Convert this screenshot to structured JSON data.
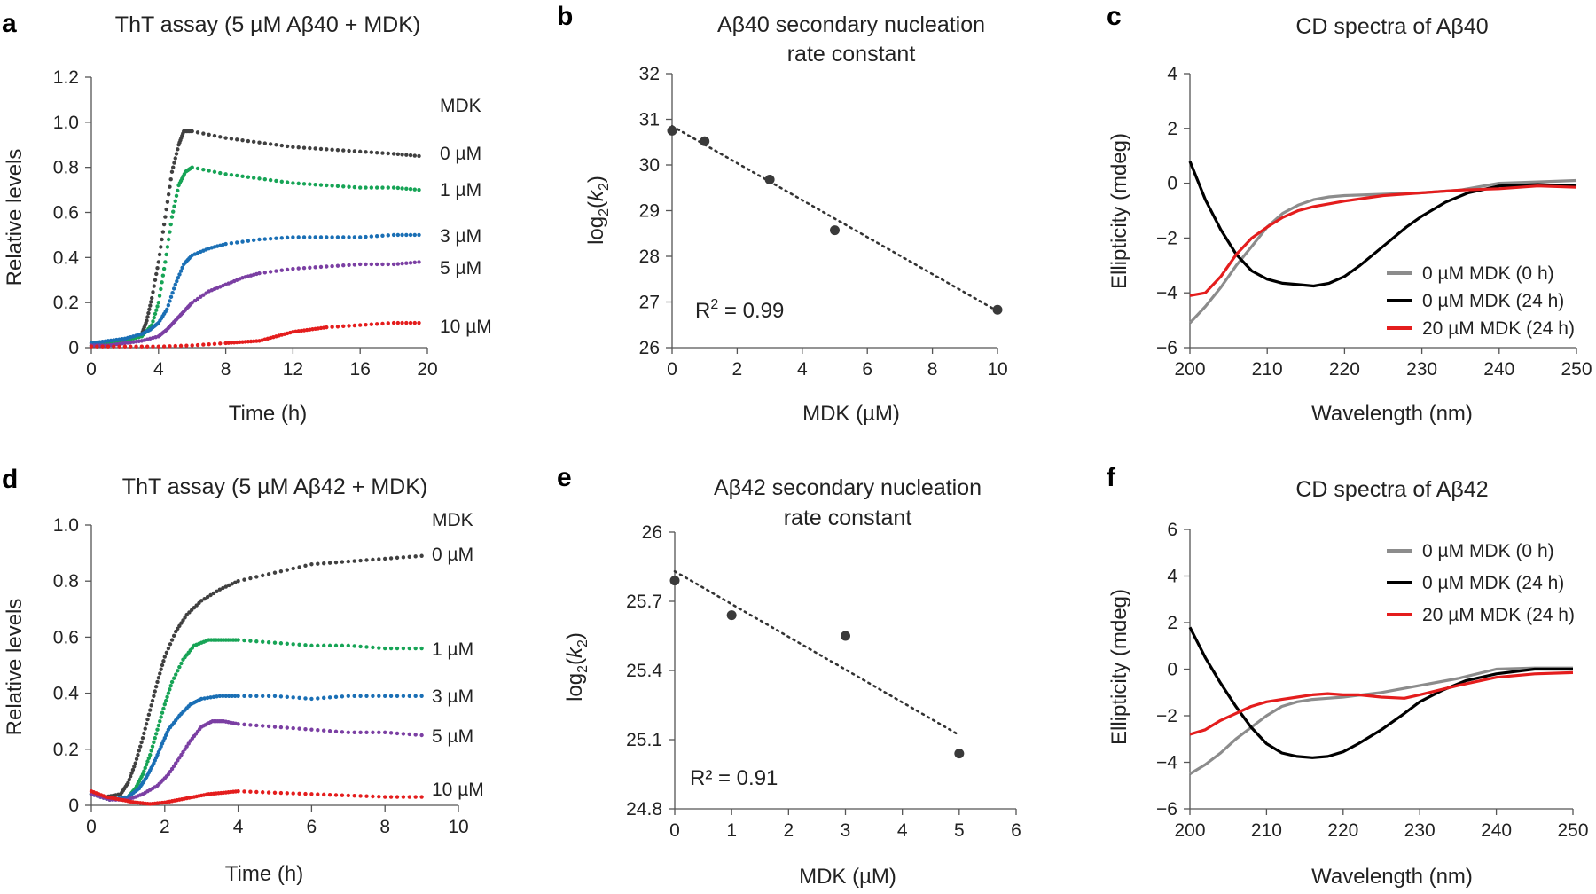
{
  "chart_data": [
    {
      "id": "a",
      "type": "scatter",
      "panel_label": "a",
      "title": "ThT assay (5 µM Aβ40 + MDK)",
      "xlabel": "Time (h)",
      "ylabel": "Relative levels",
      "xlim": [
        0,
        20
      ],
      "ylim": [
        0,
        1.2
      ],
      "xticks": [
        0,
        4,
        8,
        12,
        16,
        20
      ],
      "yticks": [
        0,
        0.2,
        0.4,
        0.6,
        0.8,
        1.0,
        1.2
      ],
      "ytick_labels": [
        "0",
        "0.2",
        "0.4",
        "0.6",
        "0.8",
        "1.0",
        "1.2"
      ],
      "legend_title": "MDK",
      "series": [
        {
          "name": "0 µM",
          "color": "#404040",
          "x": [
            0,
            1,
            2,
            3,
            3.3,
            3.6,
            4,
            4.4,
            4.8,
            5.2,
            5.5,
            6,
            8,
            10,
            12,
            14,
            16,
            18,
            19.5
          ],
          "y": [
            0.02,
            0.02,
            0.03,
            0.06,
            0.12,
            0.22,
            0.38,
            0.58,
            0.78,
            0.9,
            0.96,
            0.96,
            0.93,
            0.91,
            0.89,
            0.88,
            0.87,
            0.86,
            0.85
          ]
        },
        {
          "name": "1 µM",
          "color": "#17a456",
          "x": [
            0,
            1,
            2,
            3,
            3.6,
            4,
            4.4,
            4.8,
            5.2,
            5.6,
            6,
            8,
            10,
            12,
            14,
            16,
            18,
            19.5
          ],
          "y": [
            0.01,
            0.02,
            0.03,
            0.05,
            0.1,
            0.2,
            0.38,
            0.58,
            0.72,
            0.78,
            0.8,
            0.77,
            0.75,
            0.73,
            0.72,
            0.71,
            0.71,
            0.7
          ]
        },
        {
          "name": "3 µM",
          "color": "#1a6fb5",
          "x": [
            0,
            1,
            2,
            3,
            3.5,
            4,
            4.5,
            5,
            5.5,
            6,
            7,
            8,
            10,
            12,
            14,
            16,
            18,
            19.5
          ],
          "y": [
            0.02,
            0.03,
            0.04,
            0.06,
            0.08,
            0.11,
            0.17,
            0.28,
            0.37,
            0.41,
            0.44,
            0.46,
            0.48,
            0.49,
            0.49,
            0.49,
            0.5,
            0.5
          ]
        },
        {
          "name": "5 µM",
          "color": "#7b3fa3",
          "x": [
            0,
            1,
            2,
            3,
            4,
            4.5,
            5,
            5.5,
            6,
            7,
            8,
            9,
            10,
            12,
            14,
            16,
            18,
            19.5
          ],
          "y": [
            0.01,
            0.01,
            0.02,
            0.03,
            0.05,
            0.08,
            0.12,
            0.16,
            0.2,
            0.25,
            0.28,
            0.31,
            0.33,
            0.35,
            0.36,
            0.37,
            0.37,
            0.38
          ]
        },
        {
          "name": "10 µM",
          "color": "#e41d1d",
          "x": [
            0,
            2,
            4,
            6,
            8,
            9,
            10,
            11,
            12,
            13,
            14,
            16,
            18,
            19.5
          ],
          "y": [
            0.005,
            0.005,
            0.005,
            0.01,
            0.02,
            0.025,
            0.03,
            0.05,
            0.07,
            0.08,
            0.09,
            0.1,
            0.11,
            0.11
          ]
        }
      ]
    },
    {
      "id": "b",
      "type": "scatter",
      "panel_label": "b",
      "title": [
        "Aβ40 secondary nucleation",
        "rate constant"
      ],
      "xlabel": "MDK (µM)",
      "ylabel": "log2(k2)",
      "xlim": [
        0,
        10
      ],
      "ylim": [
        26,
        32
      ],
      "xticks": [
        0,
        2,
        4,
        6,
        8,
        10
      ],
      "yticks": [
        26,
        27,
        28,
        29,
        30,
        31,
        32
      ],
      "points": {
        "x": [
          0,
          1,
          3,
          5,
          10
        ],
        "y": [
          30.75,
          30.52,
          29.68,
          28.57,
          26.83
        ]
      },
      "fit": {
        "x": [
          0,
          10
        ],
        "y": [
          30.85,
          26.8
        ]
      },
      "annotation": "R2 = 0.99"
    },
    {
      "id": "c",
      "type": "line",
      "panel_label": "c",
      "title": "CD spectra of Aβ40",
      "xlabel": "Wavelength (nm)",
      "ylabel": "Ellipticity (mdeg)",
      "xlim": [
        200,
        250
      ],
      "ylim": [
        -6,
        4
      ],
      "xticks": [
        200,
        210,
        220,
        230,
        240,
        250
      ],
      "yticks": [
        -6,
        -4,
        -2,
        0,
        2,
        4
      ],
      "ytick_labels": [
        "−6",
        "−4",
        "−2",
        "0",
        "2",
        "4"
      ],
      "legend_position": "bottom-right",
      "series": [
        {
          "name": "0 µM MDK (0 h)",
          "color": "#8c8c8c",
          "x": [
            200,
            202,
            204,
            206,
            208,
            210,
            212,
            214,
            216,
            218,
            220,
            225,
            230,
            235,
            240,
            245,
            250
          ],
          "y": [
            -5.1,
            -4.5,
            -3.8,
            -3.0,
            -2.3,
            -1.6,
            -1.1,
            -0.8,
            -0.6,
            -0.5,
            -0.45,
            -0.4,
            -0.35,
            -0.25,
            0.0,
            0.05,
            0.1
          ]
        },
        {
          "name": "0 µM MDK (24 h)",
          "color": "#000000",
          "x": [
            200,
            202,
            204,
            206,
            208,
            210,
            212,
            214,
            216,
            218,
            220,
            222,
            225,
            228,
            230,
            233,
            236,
            240,
            245,
            250
          ],
          "y": [
            0.8,
            -0.6,
            -1.7,
            -2.6,
            -3.2,
            -3.5,
            -3.65,
            -3.7,
            -3.75,
            -3.65,
            -3.4,
            -3.0,
            -2.3,
            -1.6,
            -1.2,
            -0.7,
            -0.35,
            -0.1,
            -0.05,
            -0.1
          ]
        },
        {
          "name": "20 µM MDK (24 h)",
          "color": "#e41d1d",
          "x": [
            200,
            202,
            204,
            206,
            208,
            210,
            212,
            214,
            216,
            218,
            220,
            225,
            230,
            235,
            240,
            245,
            250
          ],
          "y": [
            -4.1,
            -4.0,
            -3.4,
            -2.6,
            -2.0,
            -1.6,
            -1.25,
            -1.0,
            -0.85,
            -0.75,
            -0.65,
            -0.45,
            -0.35,
            -0.25,
            -0.2,
            -0.1,
            -0.15
          ]
        }
      ]
    },
    {
      "id": "d",
      "type": "scatter",
      "panel_label": "d",
      "title": "ThT assay (5 µM Aβ42 + MDK)",
      "xlabel": "Time (h)",
      "ylabel": "Relative levels",
      "xlim": [
        0,
        10
      ],
      "ylim": [
        0,
        1.0
      ],
      "xticks": [
        0,
        2,
        4,
        6,
        8,
        10
      ],
      "yticks": [
        0,
        0.2,
        0.4,
        0.6,
        0.8,
        1.0
      ],
      "ytick_labels": [
        "0",
        "0.2",
        "0.4",
        "0.6",
        "0.8",
        "1.0"
      ],
      "legend_title": "MDK",
      "series": [
        {
          "name": "0 µM",
          "color": "#404040",
          "x": [
            0,
            0.4,
            0.8,
            1.0,
            1.2,
            1.4,
            1.6,
            1.8,
            2.0,
            2.3,
            2.6,
            3,
            3.5,
            4,
            5,
            6,
            7,
            8,
            9
          ],
          "y": [
            0.04,
            0.03,
            0.04,
            0.08,
            0.15,
            0.24,
            0.34,
            0.44,
            0.53,
            0.62,
            0.68,
            0.73,
            0.77,
            0.8,
            0.83,
            0.86,
            0.87,
            0.88,
            0.89
          ]
        },
        {
          "name": "1 µM",
          "color": "#17a456",
          "x": [
            0,
            0.5,
            1.0,
            1.2,
            1.4,
            1.6,
            1.8,
            2.0,
            2.2,
            2.5,
            2.8,
            3.2,
            3.6,
            4,
            5,
            6,
            7,
            8,
            9
          ],
          "y": [
            0.04,
            0.02,
            0.03,
            0.06,
            0.11,
            0.18,
            0.27,
            0.36,
            0.44,
            0.52,
            0.57,
            0.59,
            0.59,
            0.59,
            0.58,
            0.57,
            0.57,
            0.56,
            0.56
          ]
        },
        {
          "name": "3 µM",
          "color": "#1a6fb5",
          "x": [
            0,
            0.5,
            1.0,
            1.3,
            1.5,
            1.7,
            1.9,
            2.1,
            2.4,
            2.7,
            3,
            3.5,
            4,
            5,
            6,
            7,
            8,
            9
          ],
          "y": [
            0.04,
            0.02,
            0.03,
            0.06,
            0.1,
            0.15,
            0.21,
            0.27,
            0.32,
            0.36,
            0.38,
            0.39,
            0.39,
            0.39,
            0.38,
            0.39,
            0.39,
            0.39
          ]
        },
        {
          "name": "5 µM",
          "color": "#7b3fa3",
          "x": [
            0,
            0.5,
            1.0,
            1.4,
            1.8,
            2.1,
            2.4,
            2.7,
            3.0,
            3.3,
            3.6,
            4,
            5,
            6,
            7,
            8,
            9
          ],
          "y": [
            0.04,
            0.02,
            0.02,
            0.04,
            0.07,
            0.11,
            0.17,
            0.23,
            0.28,
            0.3,
            0.3,
            0.29,
            0.28,
            0.27,
            0.26,
            0.26,
            0.25
          ]
        },
        {
          "name": "10 µM",
          "color": "#e41d1d",
          "x": [
            0,
            0.4,
            0.8,
            1.2,
            1.6,
            2.0,
            2.4,
            2.8,
            3.2,
            3.6,
            4,
            5,
            6,
            7,
            8,
            9
          ],
          "y": [
            0.05,
            0.03,
            0.02,
            0.01,
            0.005,
            0.01,
            0.02,
            0.03,
            0.04,
            0.045,
            0.05,
            0.045,
            0.04,
            0.035,
            0.03,
            0.03
          ]
        }
      ]
    },
    {
      "id": "e",
      "type": "scatter",
      "panel_label": "e",
      "title": [
        "Aβ42 secondary nucleation",
        "rate constant"
      ],
      "xlabel": "MDK (µM)",
      "ylabel": "log2(k2)",
      "xlim": [
        0,
        6
      ],
      "ylim": [
        24.8,
        26
      ],
      "xticks": [
        0,
        1,
        2,
        3,
        4,
        5,
        6
      ],
      "yticks": [
        24.8,
        25.1,
        25.4,
        25.7,
        26
      ],
      "ytick_labels": [
        "24.8",
        "25.1",
        "25.4",
        "25.7",
        "26"
      ],
      "points": {
        "x": [
          0,
          1,
          3,
          5
        ],
        "y": [
          25.79,
          25.64,
          25.55,
          25.04
        ]
      },
      "fit": {
        "x": [
          0,
          5
        ],
        "y": [
          25.83,
          25.12
        ]
      },
      "annotation": "R² = 0.91"
    },
    {
      "id": "f",
      "type": "line",
      "panel_label": "f",
      "title": "CD spectra of Aβ42",
      "xlabel": "Wavelength (nm)",
      "ylabel": "Ellipticity (mdeg)",
      "xlim": [
        200,
        250
      ],
      "ylim": [
        -6,
        6
      ],
      "xticks": [
        200,
        210,
        220,
        230,
        240,
        250
      ],
      "yticks": [
        -6,
        -4,
        -2,
        0,
        2,
        4,
        6
      ],
      "ytick_labels": [
        "−6",
        "−4",
        "−2",
        "0",
        "2",
        "4",
        "6"
      ],
      "legend_position": "top-right",
      "series": [
        {
          "name": "0 µM MDK (0 h)",
          "color": "#8c8c8c",
          "x": [
            200,
            202,
            204,
            206,
            208,
            210,
            212,
            214,
            216,
            218,
            220,
            225,
            230,
            235,
            240,
            245,
            250
          ],
          "y": [
            -4.5,
            -4.1,
            -3.6,
            -3.0,
            -2.5,
            -2.0,
            -1.6,
            -1.4,
            -1.3,
            -1.25,
            -1.2,
            -1.0,
            -0.7,
            -0.4,
            0.0,
            0.05,
            0.05
          ]
        },
        {
          "name": "0 µM MDK (24 h)",
          "color": "#000000",
          "x": [
            200,
            202,
            204,
            206,
            208,
            210,
            212,
            214,
            216,
            218,
            220,
            222,
            225,
            228,
            230,
            233,
            236,
            240,
            245,
            250
          ],
          "y": [
            1.8,
            0.5,
            -0.6,
            -1.6,
            -2.5,
            -3.2,
            -3.6,
            -3.75,
            -3.8,
            -3.75,
            -3.55,
            -3.2,
            -2.6,
            -1.9,
            -1.4,
            -0.9,
            -0.5,
            -0.2,
            0.0,
            0.0
          ]
        },
        {
          "name": "20 µM MDK (24 h)",
          "color": "#e41d1d",
          "x": [
            200,
            202,
            204,
            206,
            208,
            210,
            212,
            214,
            216,
            218,
            220,
            222,
            225,
            228,
            230,
            235,
            240,
            245,
            250
          ],
          "y": [
            -2.8,
            -2.6,
            -2.2,
            -1.9,
            -1.6,
            -1.4,
            -1.3,
            -1.2,
            -1.1,
            -1.05,
            -1.1,
            -1.1,
            -1.2,
            -1.25,
            -1.1,
            -0.7,
            -0.35,
            -0.2,
            -0.15
          ]
        }
      ]
    }
  ]
}
